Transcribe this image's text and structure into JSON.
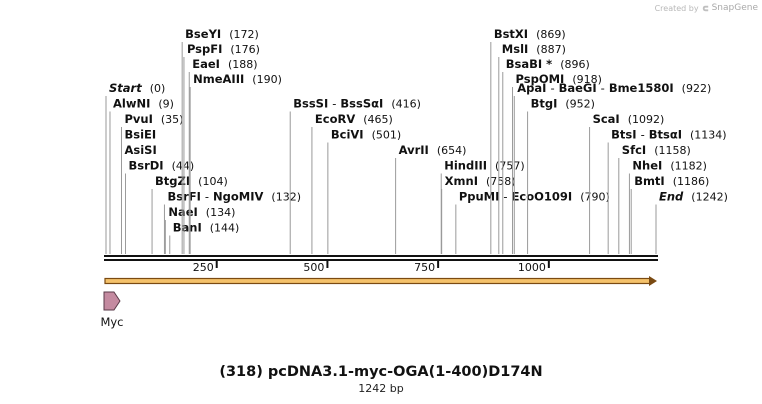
{
  "credit": {
    "prefix": "Created by",
    "brand": "SnapGene"
  },
  "plasmid": {
    "name": "(318) pcDNA3.1-myc-OGA(1-400)D174N",
    "size_label": "1242 bp",
    "length": 1242
  },
  "sites": [
    {
      "label": "Start",
      "position": "(0)",
      "bp": 0,
      "row": 0,
      "style": "italic"
    },
    {
      "label": "AlwNI",
      "position": "(9)",
      "bp": 9,
      "row": 1
    },
    {
      "label": "PvuI",
      "position": "(35)",
      "bp": 35,
      "row": 2
    },
    {
      "label": "BsiEI",
      "position": "",
      "bp": 35,
      "row": 3
    },
    {
      "label": "AsiSI",
      "position": "",
      "bp": 35,
      "row": 4
    },
    {
      "label": "BsrDI",
      "position": "(44)",
      "bp": 44,
      "row": 5
    },
    {
      "label": "BtgZI",
      "position": "(104)",
      "bp": 104,
      "row": 6
    },
    {
      "label": "BsrFI - NgoMIV",
      "position": "(132)",
      "bp": 132,
      "row": 7
    },
    {
      "label": "NaeI",
      "position": "(134)",
      "bp": 134,
      "row": 8
    },
    {
      "label": "BanI",
      "position": "(144)",
      "bp": 144,
      "row": 9
    },
    {
      "label": "BseYI",
      "position": "(172)",
      "bp": 172,
      "row": -4
    },
    {
      "label": "PspFI",
      "position": "(176)",
      "bp": 176,
      "row": -3
    },
    {
      "label": "EaeI",
      "position": "(188)",
      "bp": 188,
      "row": -2
    },
    {
      "label": "NmeAIII",
      "position": "(190)",
      "bp": 190,
      "row": -1
    },
    {
      "label": "BssSI - BssSαI",
      "position": "(416)",
      "bp": 416,
      "row": 1
    },
    {
      "label": "EcoRV",
      "position": "(465)",
      "bp": 465,
      "row": 2
    },
    {
      "label": "BciVI",
      "position": "(501)",
      "bp": 501,
      "row": 3
    },
    {
      "label": "AvrII",
      "position": "(654)",
      "bp": 654,
      "row": 4
    },
    {
      "label": "HindIII",
      "position": "(757)",
      "bp": 757,
      "row": 5
    },
    {
      "label": "XmnI",
      "position": "(758)",
      "bp": 758,
      "row": 6
    },
    {
      "label": "PpuMI - EcoO109I",
      "position": "(790)",
      "bp": 790,
      "row": 7
    },
    {
      "label": "BstXI",
      "position": "(869)",
      "bp": 869,
      "row": -4
    },
    {
      "label": "MslI",
      "position": "(887)",
      "bp": 887,
      "row": -3
    },
    {
      "label": "BsaBI *",
      "position": "(896)",
      "bp": 896,
      "row": -2
    },
    {
      "label": "PspOMI",
      "position": "(918)",
      "bp": 918,
      "row": -1
    },
    {
      "label": "ApaI - BaeGI - Bme1580I",
      "position": "(922)",
      "bp": 922,
      "row": 0
    },
    {
      "label": "BtgI",
      "position": "(952)",
      "bp": 952,
      "row": 1
    },
    {
      "label": "ScaI",
      "position": "(1092)",
      "bp": 1092,
      "row": 2
    },
    {
      "label": "BtsI - BtsαI",
      "position": "(1134)",
      "bp": 1134,
      "row": 3
    },
    {
      "label": "SfcI",
      "position": "(1158)",
      "bp": 1158,
      "row": 4
    },
    {
      "label": "NheI",
      "position": "(1182)",
      "bp": 1182,
      "row": 5
    },
    {
      "label": "BmtI",
      "position": "(1186)",
      "bp": 1186,
      "row": 6
    },
    {
      "label": "End",
      "position": "(1242)",
      "bp": 1242,
      "row": 7,
      "style": "italic"
    }
  ],
  "ticks": [
    {
      "bp": 250,
      "label": "250"
    },
    {
      "bp": 500,
      "label": "500"
    },
    {
      "bp": 750,
      "label": "750"
    },
    {
      "bp": 1000,
      "label": "1000"
    }
  ],
  "features": [
    {
      "name": "Myc",
      "start": 0,
      "end": 27,
      "color": "#c48aa0",
      "direction": "forward"
    }
  ],
  "colors": {
    "backbone": "#111111",
    "orf_fill": "#f5c26b",
    "orf_stroke": "#7a4a12",
    "site_line": "#9a9a9a"
  }
}
